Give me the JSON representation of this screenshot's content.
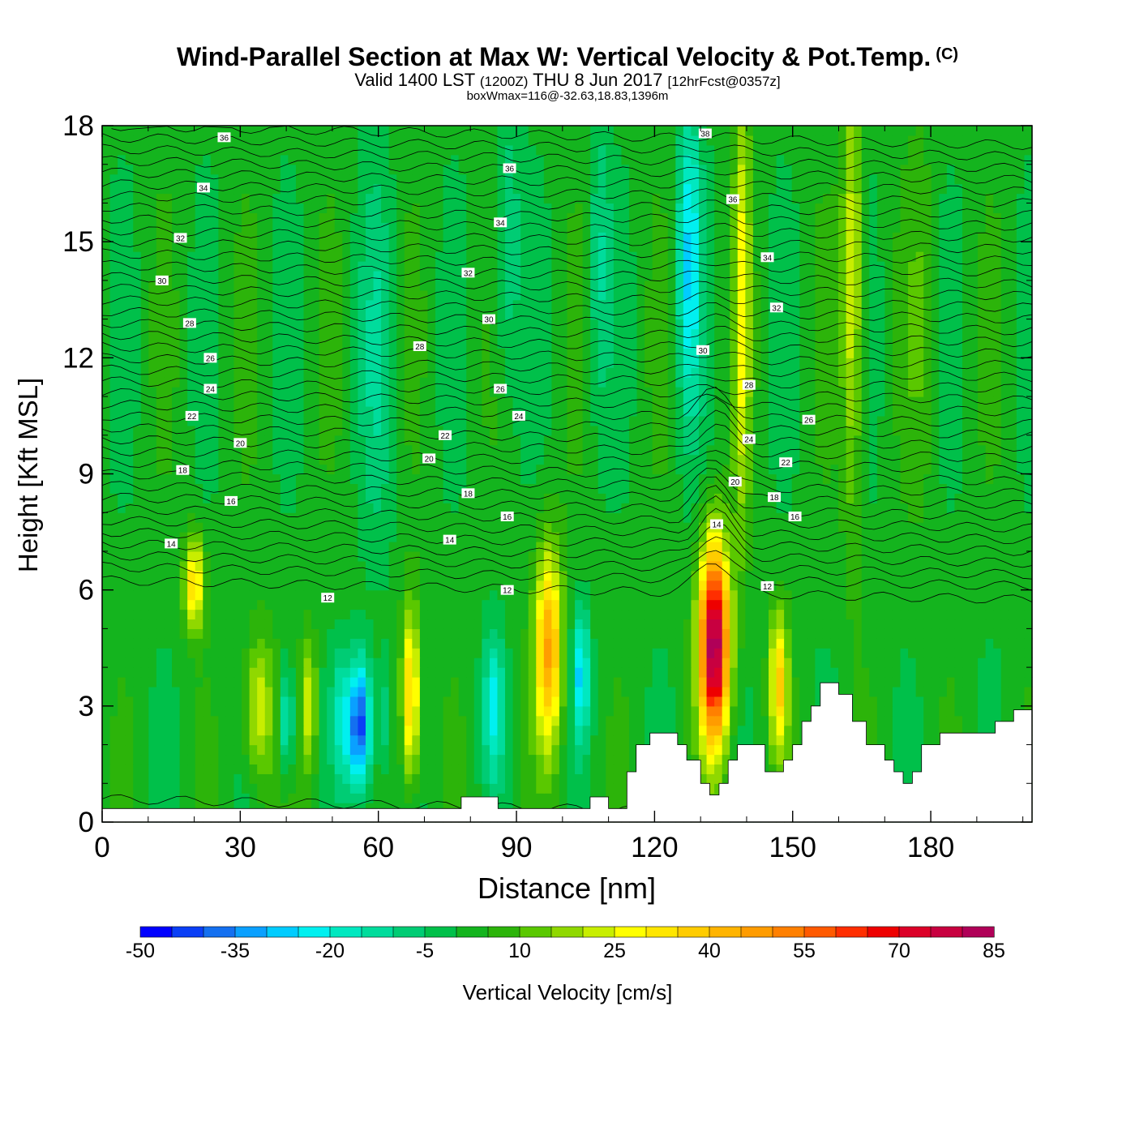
{
  "header": {
    "title": "Wind-Parallel Section at Max W: Vertical Velocity & Pot.Temp.",
    "copyright": "(C)",
    "subtitle_main": "Valid 1400 LST",
    "subtitle_z": "(1200Z)",
    "subtitle_date": "THU 8 Jun 2017",
    "subtitle_fcst": "[12hrFcst@0357z]",
    "boxwmax": "boxWmax=116@-32.63,18.83,1396m"
  },
  "chart_data": {
    "type": "heatmap",
    "xlabel": "Distance [nm]",
    "ylabel": "Height [Kft MSL]",
    "xlim": [
      0,
      202
    ],
    "ylim": [
      0,
      18
    ],
    "x_ticks": [
      0,
      30,
      60,
      90,
      120,
      150,
      180
    ],
    "y_ticks": [
      0,
      3,
      6,
      9,
      12,
      15,
      18
    ],
    "background_field": 2,
    "features": [
      {
        "x": 20,
        "y": 6.2,
        "w": 2.2,
        "h": 1.2,
        "v": 35
      },
      {
        "x": 34,
        "y": 2.9,
        "w": 3.2,
        "h": 2.0,
        "v": 25
      },
      {
        "x": 40,
        "y": 2.7,
        "w": 1.6,
        "h": 1.4,
        "v": -20
      },
      {
        "x": 45,
        "y": 3.0,
        "w": 1.6,
        "h": 1.8,
        "v": 25
      },
      {
        "x": 52,
        "y": 2.7,
        "w": 2.0,
        "h": 1.6,
        "v": -15
      },
      {
        "x": 56,
        "y": 2.5,
        "w": 2.6,
        "h": 1.7,
        "v": -45
      },
      {
        "x": 61,
        "y": 2.7,
        "w": 1.2,
        "h": 1.5,
        "v": -10
      },
      {
        "x": 67,
        "y": 3.3,
        "w": 2.0,
        "h": 2.3,
        "v": 40
      },
      {
        "x": 85,
        "y": 3.0,
        "w": 2.2,
        "h": 1.8,
        "v": -20
      },
      {
        "x": 97,
        "y": 4.5,
        "w": 3.0,
        "h": 2.6,
        "v": 45
      },
      {
        "x": 104,
        "y": 3.8,
        "w": 1.8,
        "h": 1.6,
        "v": -25
      },
      {
        "x": 133,
        "y": 4.6,
        "w": 3.2,
        "h": 2.6,
        "v": 85
      },
      {
        "x": 147,
        "y": 3.6,
        "w": 2.0,
        "h": 1.8,
        "v": 35
      },
      {
        "x": 127.5,
        "y": 14.5,
        "w": 2.6,
        "h": 4.0,
        "v": -25
      },
      {
        "x": 139,
        "y": 13.5,
        "w": 1.8,
        "h": 6.0,
        "v": 25
      },
      {
        "x": 163,
        "y": 14.0,
        "w": 2.2,
        "h": 6.0,
        "v": 25
      },
      {
        "x": 88,
        "y": 15.0,
        "w": 3.0,
        "h": 4.0,
        "v": -10
      },
      {
        "x": 108,
        "y": 14.5,
        "w": 2.4,
        "h": 4.0,
        "v": -10
      },
      {
        "x": 178,
        "y": 13.0,
        "w": 3.5,
        "h": 5.0,
        "v": 8
      },
      {
        "x": 60,
        "y": 12.0,
        "w": 4.0,
        "h": 5.0,
        "v": -8
      }
    ],
    "terrain": [
      [
        0,
        0.35
      ],
      [
        78,
        0.35
      ],
      [
        78,
        0.65
      ],
      [
        86,
        0.65
      ],
      [
        86,
        0.35
      ],
      [
        106,
        0.35
      ],
      [
        106,
        0.65
      ],
      [
        110,
        0.65
      ],
      [
        110,
        0.35
      ],
      [
        114,
        0.35
      ],
      [
        114,
        0.65
      ],
      [
        114,
        1.3
      ],
      [
        116,
        1.3
      ],
      [
        116,
        2.0
      ],
      [
        119,
        2.0
      ],
      [
        119,
        2.3
      ],
      [
        125,
        2.3
      ],
      [
        125,
        2.0
      ],
      [
        127,
        2.0
      ],
      [
        127,
        1.6
      ],
      [
        130,
        1.6
      ],
      [
        130,
        1.0
      ],
      [
        132,
        1.0
      ],
      [
        132,
        0.7
      ],
      [
        134,
        0.7
      ],
      [
        134,
        1.0
      ],
      [
        136,
        1.0
      ],
      [
        136,
        1.6
      ],
      [
        138,
        1.6
      ],
      [
        138,
        2.0
      ],
      [
        144,
        2.0
      ],
      [
        144,
        1.3
      ],
      [
        148,
        1.3
      ],
      [
        148,
        1.6
      ],
      [
        150,
        1.6
      ],
      [
        150,
        2.0
      ],
      [
        152,
        2.0
      ],
      [
        152,
        2.6
      ],
      [
        154,
        2.6
      ],
      [
        154,
        3.0
      ],
      [
        156,
        3.0
      ],
      [
        156,
        3.6
      ],
      [
        160,
        3.6
      ],
      [
        160,
        3.3
      ],
      [
        163,
        3.3
      ],
      [
        163,
        2.6
      ],
      [
        166,
        2.6
      ],
      [
        166,
        2.0
      ],
      [
        170,
        2.0
      ],
      [
        170,
        1.6
      ],
      [
        172,
        1.6
      ],
      [
        172,
        1.3
      ],
      [
        174,
        1.3
      ],
      [
        174,
        1.0
      ],
      [
        176,
        1.0
      ],
      [
        176,
        1.3
      ],
      [
        178,
        1.3
      ],
      [
        178,
        2.0
      ],
      [
        182,
        2.0
      ],
      [
        182,
        2.3
      ],
      [
        194,
        2.3
      ],
      [
        194,
        2.6
      ],
      [
        198,
        2.6
      ],
      [
        198,
        2.9
      ],
      [
        202,
        2.9
      ]
    ],
    "theta_contours": {
      "interval_level": 1,
      "base_height": [
        0.6,
        6.25,
        6.6,
        6.9,
        7.2,
        7.5,
        7.8,
        8.1,
        8.4,
        8.7,
        9.0,
        9.3,
        9.6,
        9.9,
        10.2,
        10.5,
        10.8,
        11.1,
        11.4,
        11.7,
        12.0,
        12.3,
        12.6,
        12.9,
        13.2,
        13.5,
        13.8,
        14.1,
        14.4,
        14.7,
        15.0,
        15.3,
        15.6,
        15.9,
        16.2,
        16.5,
        16.8,
        17.1,
        17.4,
        17.7,
        18.0
      ],
      "labels": [
        {
          "text": "36",
          "x": 26.5,
          "y": 17.7
        },
        {
          "text": "34",
          "x": 22,
          "y": 16.4
        },
        {
          "text": "32",
          "x": 17,
          "y": 15.1
        },
        {
          "text": "30",
          "x": 13,
          "y": 14.0
        },
        {
          "text": "28",
          "x": 19,
          "y": 12.9
        },
        {
          "text": "26",
          "x": 23.5,
          "y": 12.0
        },
        {
          "text": "24",
          "x": 23.5,
          "y": 11.2
        },
        {
          "text": "22",
          "x": 19.5,
          "y": 10.5
        },
        {
          "text": "20",
          "x": 30,
          "y": 9.8
        },
        {
          "text": "18",
          "x": 17.5,
          "y": 9.1
        },
        {
          "text": "16",
          "x": 28,
          "y": 8.3
        },
        {
          "text": "14",
          "x": 15,
          "y": 7.2
        },
        {
          "text": "12",
          "x": 49,
          "y": 5.8
        },
        {
          "text": "36",
          "x": 88.5,
          "y": 16.9
        },
        {
          "text": "34",
          "x": 86.5,
          "y": 15.5
        },
        {
          "text": "32",
          "x": 79.5,
          "y": 14.2
        },
        {
          "text": "30",
          "x": 84,
          "y": 13.0
        },
        {
          "text": "28",
          "x": 69,
          "y": 12.3
        },
        {
          "text": "26",
          "x": 86.5,
          "y": 11.2
        },
        {
          "text": "24",
          "x": 90.5,
          "y": 10.5
        },
        {
          "text": "22",
          "x": 74.5,
          "y": 10.0
        },
        {
          "text": "20",
          "x": 71,
          "y": 9.4
        },
        {
          "text": "18",
          "x": 79.5,
          "y": 8.5
        },
        {
          "text": "16",
          "x": 88,
          "y": 7.9
        },
        {
          "text": "14",
          "x": 75.5,
          "y": 7.3
        },
        {
          "text": "12",
          "x": 88,
          "y": 6.0
        },
        {
          "text": "38",
          "x": 131,
          "y": 17.8
        },
        {
          "text": "36",
          "x": 137,
          "y": 16.1
        },
        {
          "text": "34",
          "x": 144.5,
          "y": 14.6
        },
        {
          "text": "32",
          "x": 146.5,
          "y": 13.3
        },
        {
          "text": "30",
          "x": 130.5,
          "y": 12.2
        },
        {
          "text": "28",
          "x": 140.5,
          "y": 11.3
        },
        {
          "text": "26",
          "x": 153.5,
          "y": 10.4
        },
        {
          "text": "24",
          "x": 140.5,
          "y": 9.9
        },
        {
          "text": "22",
          "x": 148.5,
          "y": 9.3
        },
        {
          "text": "20",
          "x": 137.5,
          "y": 8.8
        },
        {
          "text": "18",
          "x": 146,
          "y": 8.4
        },
        {
          "text": "16",
          "x": 150.5,
          "y": 7.9
        },
        {
          "text": "14",
          "x": 133.5,
          "y": 7.7
        },
        {
          "text": "12",
          "x": 144.5,
          "y": 6.1
        }
      ]
    },
    "colorbar": {
      "label": "Vertical Velocity [cm/s]",
      "min": -50,
      "max": 85,
      "step": 5,
      "tick_labels": [
        "-50",
        "-35",
        "-20",
        "-5",
        "10",
        "25",
        "40",
        "55",
        "70",
        "85"
      ],
      "colors": [
        "#0000ff",
        "#0a3ff6",
        "#1470f0",
        "#0aa0ff",
        "#00ccff",
        "#00f0f0",
        "#00e8c0",
        "#00dc9c",
        "#00cc74",
        "#00c04a",
        "#14b41e",
        "#2cb40a",
        "#5ac800",
        "#90d800",
        "#c8ee00",
        "#ffff00",
        "#ffe600",
        "#ffcc00",
        "#ffb400",
        "#ff9c00",
        "#ff8000",
        "#ff5a00",
        "#ff2e00",
        "#ee0000",
        "#dc0028",
        "#c80040",
        "#b00058"
      ]
    }
  }
}
